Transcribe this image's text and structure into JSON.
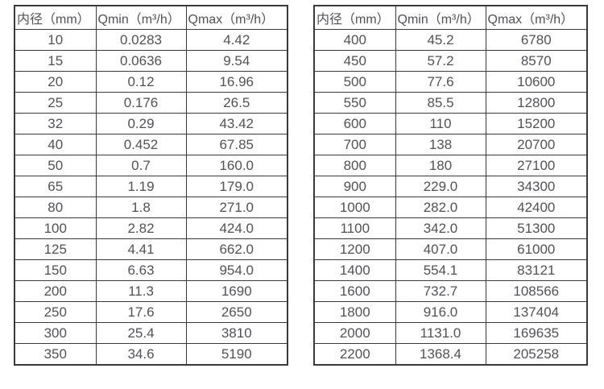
{
  "colors": {
    "background": "#ffffff",
    "border": "#3a3a3c",
    "text": "#515257"
  },
  "chart_data": [
    {
      "type": "table",
      "title": "",
      "columns": [
        "内径（mm）",
        "Qmin（m³/h）",
        "Qmax（m³/h）"
      ],
      "rows": [
        [
          "10",
          "0.0283",
          "4.42"
        ],
        [
          "15",
          "0.0636",
          "9.54"
        ],
        [
          "20",
          "0.12",
          "16.96"
        ],
        [
          "25",
          "0.176",
          "26.5"
        ],
        [
          "32",
          "0.29",
          "43.42"
        ],
        [
          "40",
          "0.452",
          "67.85"
        ],
        [
          "50",
          "0.7",
          "160.0"
        ],
        [
          "65",
          "1.19",
          "179.0"
        ],
        [
          "80",
          "1.8",
          "271.0"
        ],
        [
          "100",
          "2.82",
          "424.0"
        ],
        [
          "125",
          "4.41",
          "662.0"
        ],
        [
          "150",
          "6.63",
          "954.0"
        ],
        [
          "200",
          "11.3",
          "1690"
        ],
        [
          "250",
          "17.6",
          "2650"
        ],
        [
          "300",
          "25.4",
          "3810"
        ],
        [
          "350",
          "34.6",
          "5190"
        ]
      ]
    },
    {
      "type": "table",
      "title": "",
      "columns": [
        "内径（mm）",
        "Qmin（m³/h）",
        "Qmax（m³/h）"
      ],
      "rows": [
        [
          "400",
          "45.2",
          "6780"
        ],
        [
          "450",
          "57.2",
          "8570"
        ],
        [
          "500",
          "77.6",
          "10600"
        ],
        [
          "550",
          "85.5",
          "12800"
        ],
        [
          "600",
          "110",
          "15200"
        ],
        [
          "700",
          "138",
          "20700"
        ],
        [
          "800",
          "180",
          "27100"
        ],
        [
          "900",
          "229.0",
          "34300"
        ],
        [
          "1000",
          "282.0",
          "42400"
        ],
        [
          "1100",
          "342.0",
          "51300"
        ],
        [
          "1200",
          "407.0",
          "61000"
        ],
        [
          "1400",
          "554.1",
          "83121"
        ],
        [
          "1600",
          "732.7",
          "108566"
        ],
        [
          "1800",
          "916.0",
          "137404"
        ],
        [
          "2000",
          "1131.0",
          "169635"
        ],
        [
          "2200",
          "1368.4",
          "205258"
        ]
      ]
    }
  ]
}
